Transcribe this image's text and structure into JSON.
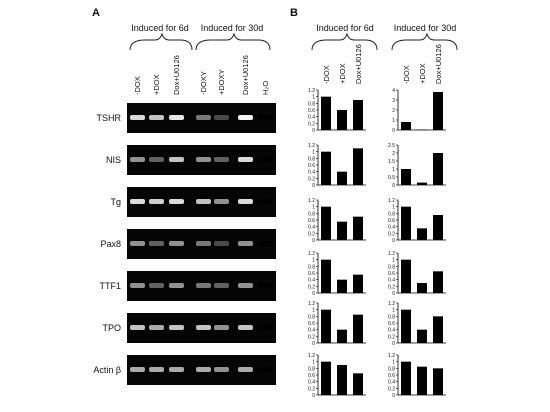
{
  "panel_a": {
    "label": "A",
    "group_labels": [
      "Induced for 6d",
      "Induced for 30d"
    ],
    "lanes": [
      "-DOX",
      "+DOX",
      "Dox+U0126",
      "-DOXY",
      "+DOXY",
      "Dox+U0126",
      "H₂O"
    ],
    "gels": [
      {
        "gene": "TSHR",
        "bands": [
          0.9,
          0.8,
          0.95,
          0.5,
          0.3,
          1,
          0
        ]
      },
      {
        "gene": "NIS",
        "bands": [
          0.6,
          0.4,
          0.8,
          0.6,
          0.4,
          0.9,
          0
        ]
      },
      {
        "gene": "Tg",
        "bands": [
          0.9,
          0.85,
          0.9,
          0.8,
          0.6,
          0.9,
          0
        ]
      },
      {
        "gene": "Pax8",
        "bands": [
          0.6,
          0.4,
          0.6,
          0.5,
          0.3,
          0.6,
          0
        ]
      },
      {
        "gene": "TTF1",
        "bands": [
          0.6,
          0.4,
          0.6,
          0.5,
          0.4,
          0.6,
          0
        ]
      },
      {
        "gene": "TPO",
        "bands": [
          0.8,
          0.7,
          0.8,
          0.8,
          0.6,
          0.8,
          0
        ]
      },
      {
        "gene": "Actin β",
        "bands": [
          0.7,
          0.7,
          0.7,
          0.7,
          0.6,
          0.7,
          0
        ]
      }
    ]
  },
  "panel_b": {
    "label": "B",
    "group_labels": [
      "Induced for 6d",
      "Induced for 30d"
    ]
  },
  "chart_data": [
    {
      "type": "bar",
      "categories": [
        "-DOX",
        "+DOX",
        "Dox+U0126"
      ],
      "values": [
        1,
        0.6,
        0.9
      ],
      "ylim": [
        0,
        1.2
      ],
      "yticks": [
        0,
        0.2,
        0.4,
        0.6,
        0.8,
        1,
        1.2
      ],
      "color": "#000000"
    },
    {
      "type": "bar",
      "categories": [
        "-DOX",
        "+DOX",
        "Dox+U0126"
      ],
      "values": [
        0.8,
        0.05,
        3.8
      ],
      "ylim": [
        0,
        4
      ],
      "yticks": [
        0,
        1,
        2,
        3,
        4
      ],
      "color": "#000000"
    },
    {
      "type": "bar",
      "values": [
        1,
        0.4,
        1.1
      ],
      "ylim": [
        0,
        1.2
      ],
      "yticks": [
        0,
        0.2,
        0.4,
        0.6,
        0.8,
        1,
        1.2
      ],
      "color": "#000000"
    },
    {
      "type": "bar",
      "values": [
        1,
        0.15,
        2
      ],
      "ylim": [
        0,
        2.5
      ],
      "yticks": [
        0,
        0.5,
        1,
        1.5,
        2,
        2.5
      ],
      "color": "#000000"
    },
    {
      "type": "bar",
      "values": [
        1,
        0.55,
        0.7
      ],
      "ylim": [
        0,
        1.2
      ],
      "yticks": [
        0,
        0.2,
        0.4,
        0.6,
        0.8,
        1,
        1.2
      ],
      "color": "#000000"
    },
    {
      "type": "bar",
      "values": [
        1,
        0.35,
        0.75
      ],
      "ylim": [
        0,
        1.2
      ],
      "yticks": [
        0,
        0.2,
        0.4,
        0.6,
        0.8,
        1,
        1.2
      ],
      "color": "#000000"
    },
    {
      "type": "bar",
      "values": [
        1,
        0.4,
        0.55
      ],
      "ylim": [
        0,
        1.2
      ],
      "yticks": [
        0,
        0.2,
        0.4,
        0.6,
        0.8,
        1,
        1.2
      ],
      "color": "#000000"
    },
    {
      "type": "bar",
      "values": [
        1,
        0.3,
        0.65
      ],
      "ylim": [
        0,
        1.2
      ],
      "yticks": [
        0,
        0.2,
        0.4,
        0.6,
        0.8,
        1,
        1.2
      ],
      "color": "#000000"
    },
    {
      "type": "bar",
      "values": [
        1,
        0.4,
        0.85
      ],
      "ylim": [
        0,
        1.2
      ],
      "yticks": [
        0,
        0.2,
        0.4,
        0.6,
        0.8,
        1,
        1.2
      ],
      "color": "#000000"
    },
    {
      "type": "bar",
      "values": [
        1,
        0.4,
        0.8
      ],
      "ylim": [
        0,
        1.2
      ],
      "yticks": [
        0,
        0.2,
        0.4,
        0.6,
        0.8,
        1,
        1.2
      ],
      "color": "#000000"
    },
    {
      "type": "bar",
      "values": [
        1,
        0.9,
        0.65
      ],
      "ylim": [
        0,
        1.2
      ],
      "yticks": [
        0,
        0.2,
        0.4,
        0.6,
        0.8,
        1,
        1.2
      ],
      "color": "#000000"
    },
    {
      "type": "bar",
      "values": [
        1,
        0.85,
        0.8
      ],
      "ylim": [
        0,
        1.2
      ],
      "yticks": [
        0,
        0.2,
        0.4,
        0.6,
        0.8,
        1,
        1.2
      ],
      "color": "#000000"
    }
  ]
}
